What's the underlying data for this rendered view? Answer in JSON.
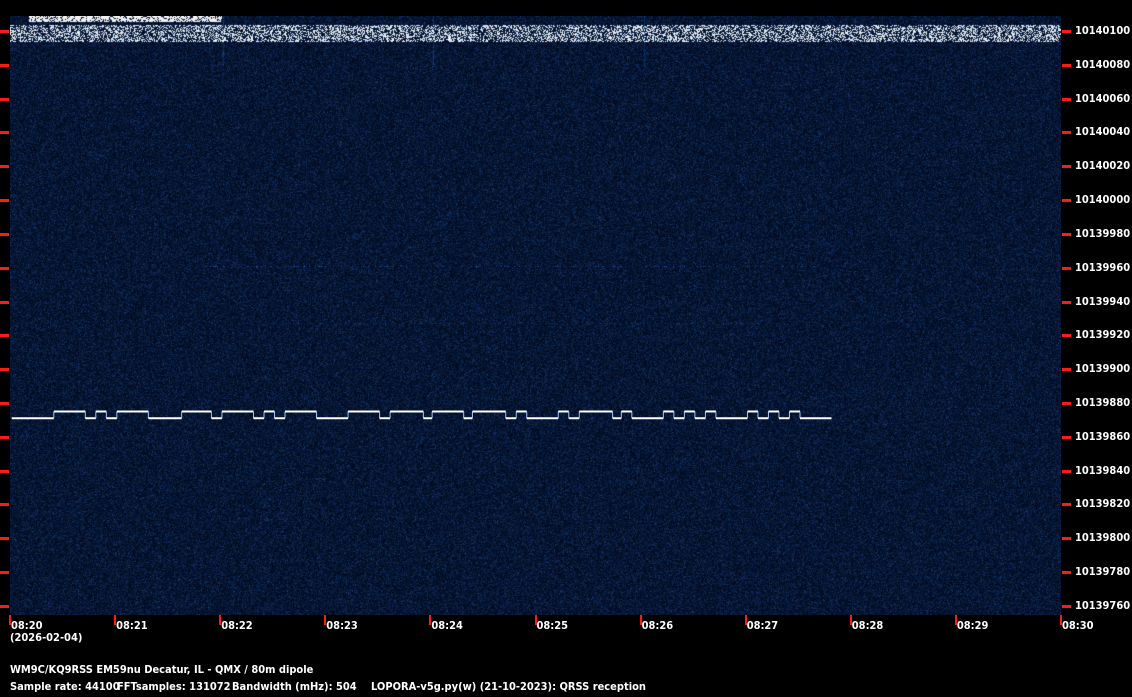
{
  "colors": {
    "background": "#000000",
    "spectrogram_bg": "#06163a",
    "tick": "#ff1a1a",
    "trace": "#ffffff",
    "text": "#ffffff"
  },
  "freq_axis": {
    "labels": [
      "10140100",
      "10140080",
      "10140060",
      "10140040",
      "10140020",
      "10140000",
      "10139980",
      "10139960",
      "10139940",
      "10139920",
      "10139900",
      "10139880",
      "10139860",
      "10139840",
      "10139820",
      "10139800",
      "10139780",
      "10139760"
    ],
    "top_hz": 10140100,
    "step_hz": 20
  },
  "time_axis": {
    "labels": [
      "08:20",
      "08:21",
      "08:22",
      "08:23",
      "08:24",
      "08:25",
      "08:26",
      "08:27",
      "08:28",
      "08:29",
      "08:30"
    ],
    "date": "(2026-02-04)"
  },
  "trace": {
    "low_hz": 10139871,
    "high_hz": 10139875,
    "start_level": "low",
    "transitions": [
      "08:20:01",
      "08:20:25",
      "08:20:43",
      "08:20:49",
      "08:20:55",
      "08:21:01",
      "08:21:19",
      "08:21:38",
      "08:21:55",
      "08:22:01",
      "08:22:19",
      "08:22:25",
      "08:22:31",
      "08:22:37",
      "08:22:55",
      "08:23:13",
      "08:23:31",
      "08:23:37",
      "08:23:56",
      "08:24:01",
      "08:24:19",
      "08:24:24",
      "08:24:43",
      "08:24:49",
      "08:24:55",
      "08:25:13",
      "08:25:19",
      "08:25:25",
      "08:25:44",
      "08:25:49",
      "08:25:55",
      "08:26:13",
      "08:26:19",
      "08:26:25",
      "08:26:31",
      "08:26:37",
      "08:26:43",
      "08:27:01",
      "08:27:07",
      "08:27:13",
      "08:27:19",
      "08:27:25",
      "08:27:31",
      "08:27:49"
    ]
  },
  "footer": {
    "station": "WM9C/KQ9RSS EM59nu Decatur, IL - QMX / 80m dipole",
    "sample_rate": "Sample rate: 44100",
    "fft_samples": "FFTsamples: 131072",
    "bandwidth": "Bandwidth (mHz): 504",
    "software": "LOPORA-v5g.py(w) (21-10-2023): QRSS reception"
  }
}
